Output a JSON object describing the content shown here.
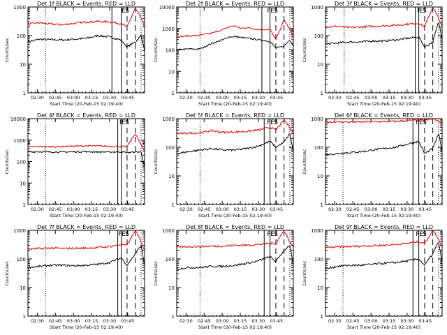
{
  "chart_data": [
    {
      "type": "line",
      "title": "Det 1f BLACK = Events, RED = LLD",
      "ylabel": "Counts/sec",
      "xlabel": "Start Time (20-Feb-15 02:19:40)",
      "x_ticks": [
        "02:30",
        "02:45",
        "03:00",
        "03:15",
        "03:30",
        "03:45"
      ],
      "y_scale": "log",
      "ylim": [
        1,
        1000
      ],
      "y_ticks": [
        "1",
        "10",
        "100",
        "1000"
      ],
      "series": [
        {
          "color": "#000000",
          "x": [
            0,
            10,
            20,
            30,
            40,
            50,
            60,
            70,
            80,
            85,
            92,
            97,
            100
          ],
          "y": [
            60,
            75,
            72,
            70,
            75,
            80,
            100,
            90,
            70,
            40,
            60,
            100,
            30
          ]
        },
        {
          "color": "#e00000",
          "x": [
            0,
            10,
            20,
            30,
            40,
            50,
            60,
            70,
            80,
            85,
            92,
            97,
            100
          ],
          "y": [
            250,
            280,
            250,
            240,
            270,
            300,
            310,
            300,
            260,
            200,
            900,
            400,
            200
          ]
        }
      ],
      "markers": {
        "dotted": [
          15,
          97
        ],
        "solid": [
          72,
          80
        ],
        "dashed": [
          85,
          92
        ]
      },
      "annotations": [
        {
          "x": 81,
          "label": "F"
        },
        {
          "x": 82,
          "label": "E"
        },
        {
          "x": 85,
          "label": "S"
        }
      ]
    },
    {
      "type": "line",
      "title": "Det 2f BLACK = Events, RED = LLD",
      "ylabel": "Counts/sec",
      "xlabel": "Start Time (20-Feb-15 02:19:40)",
      "x_ticks": [
        "02:30",
        "02:45",
        "03:00",
        "03:15",
        "03:30",
        "03:45"
      ],
      "y_scale": "log",
      "ylim": [
        1,
        10000
      ],
      "y_ticks": [
        "1",
        "10",
        "100",
        "1000",
        "10000"
      ],
      "series": [
        {
          "color": "#000000",
          "x": [
            0,
            10,
            20,
            30,
            40,
            45,
            50,
            55,
            60,
            70,
            80,
            85,
            92,
            97,
            100
          ],
          "y": [
            100,
            110,
            110,
            200,
            300,
            400,
            420,
            380,
            350,
            300,
            250,
            120,
            150,
            300,
            150
          ]
        },
        {
          "color": "#e00000",
          "x": [
            0,
            10,
            20,
            30,
            40,
            45,
            50,
            55,
            60,
            70,
            80,
            85,
            92,
            97,
            100
          ],
          "y": [
            400,
            450,
            480,
            600,
            900,
            1200,
            1300,
            1000,
            1100,
            900,
            900,
            300,
            2500,
            900,
            400
          ]
        }
      ],
      "markers": {
        "dotted": [
          20,
          97
        ],
        "solid": [
          73,
          80
        ],
        "dashed": [
          85,
          92
        ]
      },
      "annotations": [
        {
          "x": 79,
          "label": "F"
        },
        {
          "x": 82,
          "label": "E"
        },
        {
          "x": 85,
          "label": "S"
        }
      ]
    },
    {
      "type": "line",
      "title": "Det 3f BLACK = Events, RED = LLD",
      "ylabel": "Counts/sec",
      "xlabel": "Start Time (20-Feb-15 02:19:40)",
      "x_ticks": [
        "02:30",
        "02:45",
        "03:00",
        "03:15",
        "03:30",
        "03:45"
      ],
      "y_scale": "log",
      "ylim": [
        1,
        1000
      ],
      "y_ticks": [
        "1",
        "10",
        "100",
        "1000"
      ],
      "series": [
        {
          "color": "#000000",
          "x": [
            0,
            10,
            20,
            30,
            40,
            50,
            60,
            70,
            80,
            85,
            92,
            97,
            100
          ],
          "y": [
            50,
            55,
            60,
            60,
            65,
            65,
            70,
            80,
            90,
            40,
            60,
            300,
            80
          ]
        },
        {
          "color": "#e00000",
          "x": [
            0,
            10,
            20,
            30,
            40,
            50,
            60,
            70,
            80,
            85,
            92,
            97,
            100
          ],
          "y": [
            200,
            210,
            190,
            200,
            210,
            220,
            230,
            250,
            270,
            200,
            1000,
            400,
            200
          ]
        }
      ],
      "markers": {
        "dotted": [
          16,
          97
        ],
        "solid": [
          77,
          80
        ],
        "dashed": [
          85,
          92
        ]
      },
      "annotations": [
        {
          "x": 80,
          "label": "F"
        },
        {
          "x": 82,
          "label": "E"
        },
        {
          "x": 85,
          "label": "S"
        }
      ]
    },
    {
      "type": "line",
      "title": "Det 4f BLACK = Events, RED = LLD",
      "ylabel": "Counts/sec",
      "xlabel": "Start Time (20-Feb-15 02:19:40)",
      "x_ticks": [
        "02:30",
        "02:45",
        "03:00",
        "03:15",
        "03:30",
        "03:45"
      ],
      "y_scale": "log",
      "ylim": [
        1,
        10000
      ],
      "y_ticks": [
        "1",
        "10",
        "100",
        "1000",
        "10000"
      ],
      "series": [
        {
          "color": "#000000",
          "x": [
            0,
            10,
            20,
            30,
            40,
            50,
            60,
            70,
            80,
            85,
            92,
            97,
            100
          ],
          "y": [
            280,
            290,
            280,
            280,
            285,
            290,
            280,
            280,
            285,
            260,
            280,
            280,
            60
          ]
        },
        {
          "color": "#e00000",
          "x": [
            0,
            10,
            20,
            30,
            40,
            50,
            60,
            70,
            80,
            85,
            92,
            97,
            100
          ],
          "y": [
            480,
            500,
            490,
            500,
            520,
            540,
            530,
            520,
            500,
            500,
            2000,
            600,
            300
          ]
        }
      ],
      "markers": {
        "dotted": [
          15,
          97
        ],
        "solid": [
          77,
          80
        ],
        "dashed": [
          85,
          92
        ]
      },
      "annotations": [
        {
          "x": 80,
          "label": "F"
        },
        {
          "x": 82,
          "label": "E"
        },
        {
          "x": 85,
          "label": "S"
        }
      ]
    },
    {
      "type": "line",
      "title": "Det 5f BLACK = Events, RED = LLD",
      "ylabel": "Counts/sec",
      "xlabel": "Start Time (20-Feb-15 02:19:40)",
      "x_ticks": [
        "02:30",
        "02:45",
        "03:00",
        "03:15",
        "03:30",
        "03:45"
      ],
      "y_scale": "log",
      "ylim": [
        1,
        1000
      ],
      "y_ticks": [
        "1",
        "10",
        "100",
        "1000"
      ],
      "series": [
        {
          "color": "#000000",
          "x": [
            0,
            10,
            20,
            30,
            40,
            50,
            60,
            70,
            80,
            85,
            92,
            97,
            100
          ],
          "y": [
            60,
            70,
            80,
            90,
            80,
            80,
            90,
            110,
            160,
            100,
            150,
            300,
            70
          ]
        },
        {
          "color": "#e00000",
          "x": [
            0,
            10,
            20,
            30,
            40,
            50,
            60,
            70,
            80,
            85,
            92,
            97,
            100
          ],
          "y": [
            300,
            310,
            320,
            380,
            330,
            340,
            360,
            400,
            500,
            400,
            900,
            500,
            300
          ]
        }
      ],
      "markers": {
        "dotted": [
          20,
          97
        ],
        "solid": [
          75,
          80
        ],
        "dashed": [
          85,
          92
        ]
      },
      "annotations": [
        {
          "x": 79,
          "label": "F"
        },
        {
          "x": 82,
          "label": "E"
        },
        {
          "x": 85,
          "label": "S"
        }
      ]
    },
    {
      "type": "line",
      "title": "Det 6f BLACK = Events, RED = LLD",
      "ylabel": "Counts/sec",
      "xlabel": "Start Time (20-Feb-15 02:19:40)",
      "x_ticks": [
        "02:30",
        "02:45",
        "03:00",
        "03:15",
        "03:30",
        "03:45"
      ],
      "y_scale": "log",
      "ylim": [
        1,
        1000
      ],
      "y_ticks": [
        "1",
        "10",
        "100",
        "1000"
      ],
      "series": [
        {
          "color": "#000000",
          "x": [
            0,
            10,
            20,
            30,
            40,
            50,
            60,
            70,
            80,
            85,
            92,
            97,
            100
          ],
          "y": [
            55,
            60,
            65,
            70,
            80,
            90,
            100,
            130,
            160,
            60,
            90,
            300,
            70
          ]
        },
        {
          "color": "#e00000",
          "x": [
            0,
            10,
            20,
            30,
            40,
            50,
            60,
            70,
            80,
            85,
            92,
            97,
            100
          ],
          "y": [
            750,
            780,
            760,
            770,
            780,
            790,
            800,
            850,
            900,
            850,
            1000,
            800,
            700
          ]
        }
      ],
      "markers": {
        "dotted": [
          15,
          97
        ],
        "solid": [
          75,
          80
        ],
        "dashed": [
          85,
          92
        ]
      },
      "annotations": [
        {
          "x": 79,
          "label": "F"
        },
        {
          "x": 82,
          "label": "E"
        },
        {
          "x": 85,
          "label": "S"
        }
      ]
    },
    {
      "type": "line",
      "title": "Det 7f BLACK = Events, RED = LLD",
      "ylabel": "Counts/sec",
      "xlabel": "Start Time (20-Feb-15 02:19:40)",
      "x_ticks": [
        "02:30",
        "02:45",
        "03:00",
        "03:15",
        "03:30",
        "03:45"
      ],
      "y_scale": "log",
      "ylim": [
        1,
        1000
      ],
      "y_ticks": [
        "1",
        "10",
        "100",
        "1000"
      ],
      "series": [
        {
          "color": "#000000",
          "x": [
            0,
            10,
            20,
            30,
            40,
            50,
            60,
            70,
            80,
            85,
            92,
            97,
            100
          ],
          "y": [
            50,
            55,
            60,
            60,
            58,
            60,
            65,
            75,
            110,
            60,
            150,
            300,
            60
          ]
        },
        {
          "color": "#e00000",
          "x": [
            0,
            10,
            20,
            30,
            40,
            50,
            60,
            70,
            80,
            85,
            92,
            97,
            100
          ],
          "y": [
            220,
            230,
            240,
            230,
            235,
            240,
            250,
            270,
            320,
            300,
            1000,
            400,
            200
          ]
        }
      ],
      "markers": {
        "dotted": [
          15,
          97
        ],
        "solid": [
          77,
          80
        ],
        "dashed": [
          85,
          92
        ]
      },
      "annotations": [
        {
          "x": 79,
          "label": "F"
        },
        {
          "x": 82,
          "label": "E"
        },
        {
          "x": 85,
          "label": "S"
        }
      ]
    },
    {
      "type": "line",
      "title": "Det 8f BLACK = Events, RED = LLD",
      "ylabel": "Counts/sec",
      "xlabel": "Start Time (20-Feb-15 02:19:40)",
      "x_ticks": [
        "02:30",
        "02:45",
        "03:00",
        "03:15",
        "03:30",
        "03:45"
      ],
      "y_scale": "log",
      "ylim": [
        1,
        1000
      ],
      "y_ticks": [
        "1",
        "10",
        "100",
        "1000"
      ],
      "series": [
        {
          "color": "#000000",
          "x": [
            0,
            10,
            20,
            30,
            40,
            50,
            60,
            70,
            80,
            85,
            92,
            97,
            100
          ],
          "y": [
            45,
            50,
            50,
            55,
            55,
            60,
            70,
            85,
            120,
            80,
            200,
            300,
            60
          ]
        },
        {
          "color": "#e00000",
          "x": [
            0,
            10,
            20,
            30,
            40,
            50,
            60,
            70,
            80,
            85,
            92,
            97,
            100
          ],
          "y": [
            260,
            270,
            270,
            280,
            280,
            300,
            300,
            320,
            350,
            350,
            1000,
            400,
            250
          ]
        }
      ],
      "markers": {
        "dotted": [
          20,
          97
        ],
        "solid": [
          75,
          80
        ],
        "dashed": [
          85,
          92
        ]
      },
      "annotations": [
        {
          "x": 79,
          "label": "F"
        },
        {
          "x": 82,
          "label": "E"
        },
        {
          "x": 85,
          "label": "S"
        }
      ]
    },
    {
      "type": "line",
      "title": "Det 9f BLACK = Events, RED = LLD",
      "ylabel": "Counts/sec",
      "xlabel": "Start Time (20-Feb-15 02:19:40)",
      "x_ticks": [
        "02:30",
        "02:45",
        "03:00",
        "03:15",
        "03:30",
        "03:45"
      ],
      "y_scale": "log",
      "ylim": [
        1,
        1000
      ],
      "y_ticks": [
        "1",
        "10",
        "100",
        "1000"
      ],
      "series": [
        {
          "color": "#000000",
          "x": [
            0,
            10,
            20,
            30,
            40,
            50,
            60,
            70,
            80,
            85,
            92,
            97,
            100
          ],
          "y": [
            45,
            55,
            60,
            60,
            65,
            70,
            75,
            85,
            100,
            60,
            150,
            400,
            70
          ]
        },
        {
          "color": "#e00000",
          "x": [
            0,
            10,
            20,
            30,
            40,
            50,
            60,
            70,
            80,
            85,
            92,
            97,
            100
          ],
          "y": [
            250,
            260,
            270,
            280,
            290,
            300,
            320,
            350,
            400,
            350,
            1000,
            500,
            250
          ]
        }
      ],
      "markers": {
        "dotted": [
          15,
          97
        ],
        "solid": [
          75,
          80
        ],
        "dashed": [
          85,
          92
        ]
      },
      "annotations": [
        {
          "x": 79,
          "label": "F"
        },
        {
          "x": 82,
          "label": "E"
        },
        {
          "x": 85,
          "label": "S"
        }
      ]
    }
  ]
}
